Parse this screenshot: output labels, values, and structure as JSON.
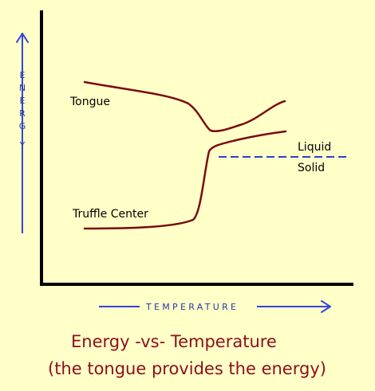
{
  "axes": {
    "y_label_letters": [
      "E",
      "N",
      "E",
      "R",
      "G",
      "Y"
    ],
    "x_label": "TEMPERATURE"
  },
  "curves": {
    "tongue": "Tongue",
    "truffle": "Truffle Center"
  },
  "phase_labels": {
    "liquid": "Liquid",
    "solid": "Solid"
  },
  "caption": {
    "line1": "Energy -vs- Temperature",
    "line2": "(the tongue provides the energy)"
  },
  "colors": {
    "background": "#ffffc8",
    "curve": "#7a0a12",
    "arrow": "#3344dd",
    "caption": "#8b0f1c"
  }
}
